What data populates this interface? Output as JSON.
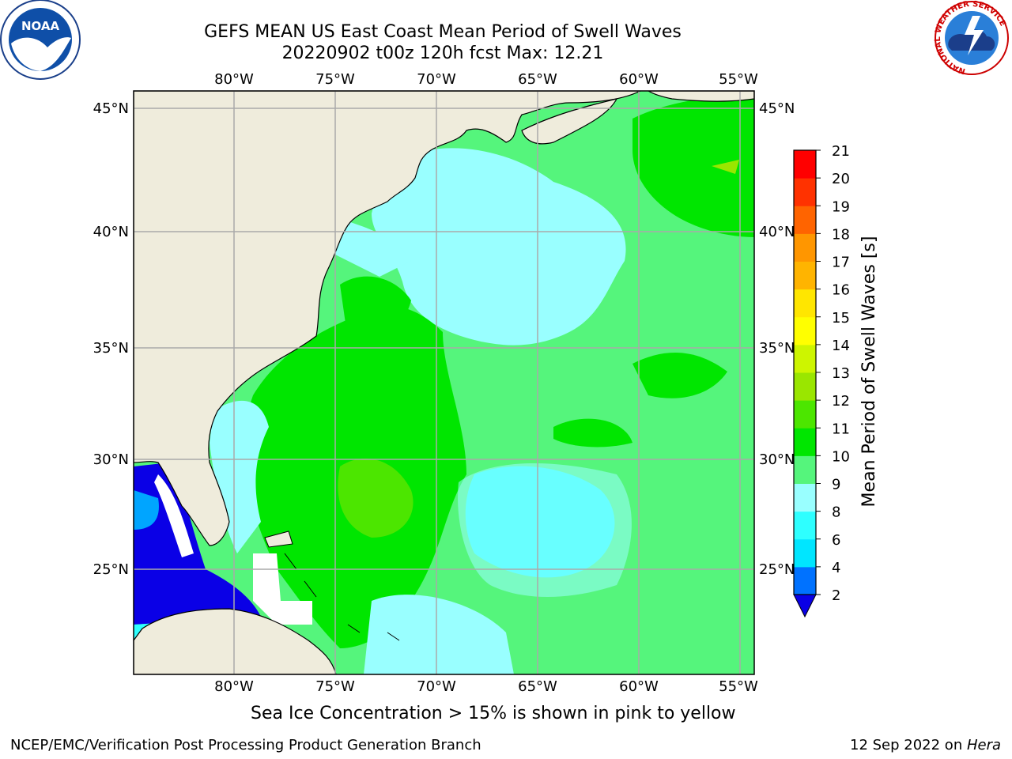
{
  "header": {
    "title_line1": "GEFS MEAN US East Coast Mean Period of Swell Waves",
    "title_line2": "20220902 t00z 120h fcst   Max: 12.21"
  },
  "map": {
    "lon_ticks": [
      "80°W",
      "75°W",
      "70°W",
      "65°W",
      "60°W",
      "55°W"
    ],
    "lat_ticks": [
      "45°N",
      "40°N",
      "35°N",
      "30°N",
      "25°N"
    ],
    "lon_range": [
      -85,
      -54
    ],
    "lat_range": [
      20.5,
      46
    ],
    "land_color": "#efecdc",
    "grid_color": "#aaaaaa"
  },
  "colorbar": {
    "label": "Mean Period of Swell Waves [s]",
    "ticks": [
      "2",
      "4",
      "6",
      "8",
      "9",
      "10",
      "11",
      "12",
      "13",
      "14",
      "15",
      "16",
      "17",
      "18",
      "19",
      "20",
      "21"
    ],
    "colors": [
      "#0072ff",
      "#00e6ff",
      "#2effff",
      "#99ffff",
      "#55f57c",
      "#00e600",
      "#4ce600",
      "#9ae600",
      "#cdf500",
      "#ffff00",
      "#ffe600",
      "#ffb400",
      "#ff9600",
      "#ff6400",
      "#ff3200",
      "#ff0000"
    ],
    "under_color": "#0a00e6"
  },
  "logos": {
    "noaa": "NOAA",
    "nws_ring": "NATIONAL WEATHER SERVICE"
  },
  "footer": {
    "ice_note": "Sea Ice Concentration > 15% is shown in pink to yellow",
    "org": "NCEP/EMC/Verification Post Processing Product Generation Branch",
    "date_prefix": "12 Sep 2022 on ",
    "date_host": "Hera"
  }
}
